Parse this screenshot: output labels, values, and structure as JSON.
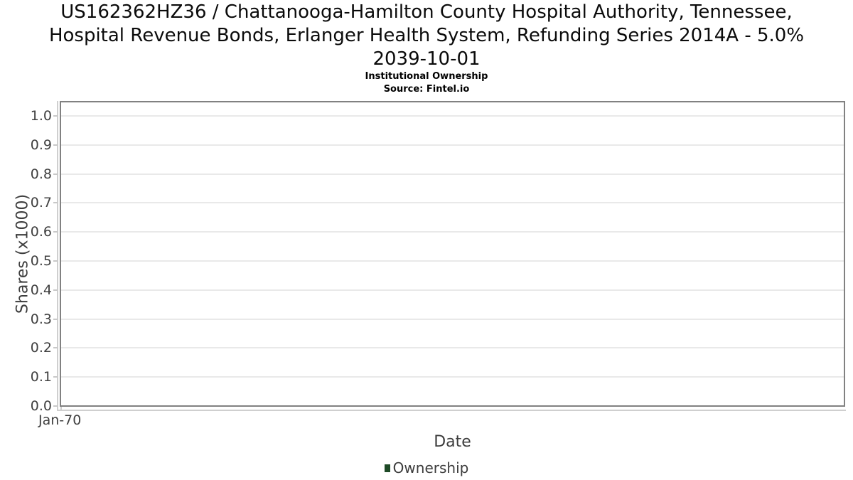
{
  "title": {
    "lines": [
      "US162362HZ36 / Chattanooga-Hamilton County Hospital Authority, Tennessee,",
      "Hospital Revenue Bonds, Erlanger Health System, Refunding Series 2014A - 5.0%",
      "2039-10-01"
    ]
  },
  "subtitle": "Institutional Ownership",
  "source": "Source: Fintel.io",
  "chart_data": {
    "type": "line",
    "title": "US162362HZ36 / Chattanooga-Hamilton County Hospital Authority, Tennessee, Hospital Revenue Bonds, Erlanger Health System, Refunding Series 2014A - 5.0% 2039-10-01",
    "subtitle": "Institutional Ownership",
    "source": "Source: Fintel.io",
    "xlabel": "Date",
    "ylabel": "Shares (x1000)",
    "x_ticks": [
      "Jan-70"
    ],
    "y_ticks": [
      "0.0",
      "0.1",
      "0.2",
      "0.3",
      "0.4",
      "0.5",
      "0.6",
      "0.7",
      "0.8",
      "0.9",
      "1.0"
    ],
    "ylim": [
      0.0,
      1.05
    ],
    "grid": true,
    "legend_position": "bottom",
    "series": [
      {
        "name": "Ownership",
        "color": "#1e4a26",
        "x": [],
        "values": []
      }
    ]
  },
  "colors": {
    "series_green": "#1e4a26",
    "plot_border": "#818181",
    "gridline": "#e9e9e9",
    "light_axis_line": "#cfcfcf",
    "tick_mark": "#c8c8c8",
    "axis_text": "#404040",
    "title_text": "#0b0b0b"
  }
}
